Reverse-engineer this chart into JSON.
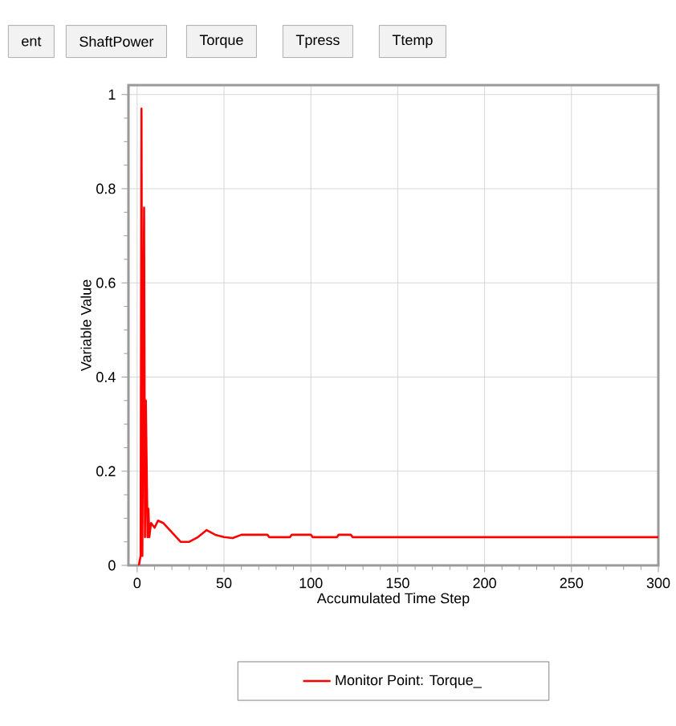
{
  "chart_data": {
    "type": "line",
    "annotations": [
      "ent",
      "ShaftPower",
      "Torque",
      "Tpress",
      "Ttemp"
    ],
    "xlabel": "Accumulated Time Step",
    "ylabel": "Variable Value",
    "xlim": [
      -5,
      300
    ],
    "ylim": [
      0,
      1.02
    ],
    "xticks": [
      0,
      50,
      100,
      150,
      200,
      250,
      300
    ],
    "yticks": [
      0,
      0.2,
      0.4,
      0.6,
      0.8,
      1
    ],
    "grid": true,
    "legend": "bottom",
    "marker": "none",
    "line_style": "solid",
    "series": [
      {
        "name": "Monitor Point: Torque_",
        "color": "#ff0000",
        "x": [
          1,
          2,
          2.5,
          3,
          4,
          4.5,
          5,
          6,
          6.5,
          7,
          8,
          10,
          12,
          15,
          20,
          25,
          30,
          35,
          40,
          45,
          50,
          55,
          60,
          75,
          76,
          88,
          89,
          100,
          101,
          115,
          116,
          123,
          124,
          300
        ],
        "values": [
          0,
          0.02,
          0.97,
          0.02,
          0.76,
          0.06,
          0.35,
          0.06,
          0.12,
          0.06,
          0.09,
          0.08,
          0.095,
          0.09,
          0.07,
          0.05,
          0.05,
          0.06,
          0.075,
          0.065,
          0.06,
          0.058,
          0.065,
          0.065,
          0.06,
          0.06,
          0.065,
          0.065,
          0.06,
          0.06,
          0.065,
          0.065,
          0.06,
          0.06
        ]
      }
    ]
  }
}
